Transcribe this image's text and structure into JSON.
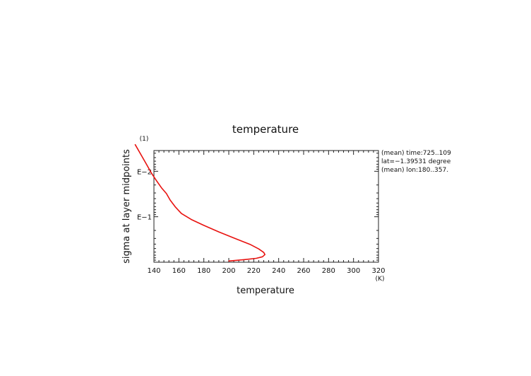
{
  "chart_data": {
    "type": "line",
    "title": "temperature",
    "xlabel": "temperature",
    "x_unit": "(K)",
    "ylabel": "sigma at layer midpoints",
    "y_unit": "(1)",
    "xlim": [
      140,
      320
    ],
    "ylim": [
      0.0035,
      1.0
    ],
    "y_scale": "log",
    "y_inverted": true,
    "grid": false,
    "x_ticks": [
      140,
      160,
      180,
      200,
      220,
      240,
      260,
      280,
      300,
      320
    ],
    "x_tick_labels": [
      "140",
      "160",
      "180",
      "200",
      "220",
      "240",
      "260",
      "280",
      "300",
      "320"
    ],
    "y_ticks": [
      0.01,
      0.1
    ],
    "y_tick_labels": [
      "E−2",
      "E−1"
    ],
    "annotations": [
      "(mean) time:725..109",
      "lat=−1.39531 degree",
      "(mean) lon:180..357."
    ],
    "series": [
      {
        "color": "#e8120f",
        "points": [
          [
            125,
            0.0026
          ],
          [
            130,
            0.0045
          ],
          [
            134,
            0.007
          ],
          [
            138,
            0.011
          ],
          [
            142,
            0.016
          ],
          [
            146,
            0.023
          ],
          [
            150,
            0.031
          ],
          [
            153,
            0.043
          ],
          [
            157,
            0.06
          ],
          [
            162,
            0.085
          ],
          [
            170,
            0.115
          ],
          [
            180,
            0.155
          ],
          [
            192,
            0.215
          ],
          [
            205,
            0.3
          ],
          [
            217,
            0.405
          ],
          [
            224,
            0.51
          ],
          [
            228,
            0.61
          ],
          [
            229,
            0.68
          ],
          [
            227,
            0.76
          ],
          [
            222,
            0.82
          ],
          [
            212,
            0.88
          ],
          [
            200,
            0.94
          ]
        ]
      }
    ]
  }
}
